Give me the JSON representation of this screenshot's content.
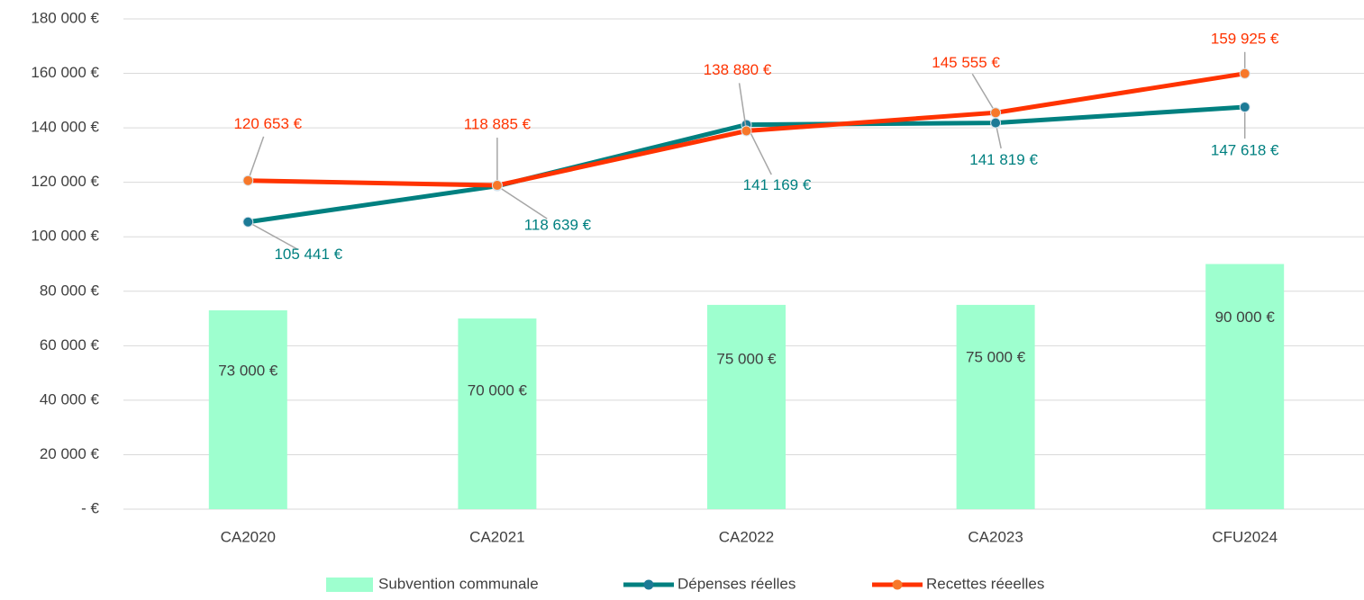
{
  "chart_data": {
    "type": "combo",
    "categories": [
      "CA2020",
      "CA2021",
      "CA2022",
      "CA2023",
      "CFU2024"
    ],
    "series": [
      {
        "name": "Subvention communale",
        "type": "bar",
        "color": "#9effcf",
        "values": [
          73000,
          70000,
          75000,
          75000,
          90000
        ],
        "value_labels": [
          "73 000 €",
          "70 000 €",
          "75 000 €",
          "75 000 €",
          "90 000 €"
        ]
      },
      {
        "name": "Dépenses réelles",
        "type": "line",
        "color": "#008080",
        "marker_color": "#1c7a96",
        "values": [
          105441,
          118639,
          141169,
          141819,
          147618
        ],
        "value_labels": [
          "105 441 €",
          "118 639 €",
          "141 169 €",
          "141 819 €",
          "147 618 €"
        ]
      },
      {
        "name": "Recettes réeelles",
        "type": "line",
        "color": "#ff3300",
        "marker_color": "#f7782a",
        "values": [
          120653,
          118885,
          138880,
          145555,
          159925
        ],
        "value_labels": [
          "120 653 €",
          "118 885 €",
          "138 880 €",
          "145 555 €",
          "159 925 €"
        ]
      }
    ],
    "ylim": [
      0,
      180000
    ],
    "yticks": [
      {
        "value": 0,
        "label": "-   €"
      },
      {
        "value": 20000,
        "label": "20 000 €"
      },
      {
        "value": 40000,
        "label": "40 000 €"
      },
      {
        "value": 60000,
        "label": "60 000 €"
      },
      {
        "value": 80000,
        "label": "80 000 €"
      },
      {
        "value": 100000,
        "label": "100 000 €"
      },
      {
        "value": 120000,
        "label": "120 000 €"
      },
      {
        "value": 140000,
        "label": "140 000 €"
      },
      {
        "value": 160000,
        "label": "160 000 €"
      },
      {
        "value": 180000,
        "label": "180 000 €"
      }
    ],
    "grid": true,
    "legend": "bottom"
  }
}
